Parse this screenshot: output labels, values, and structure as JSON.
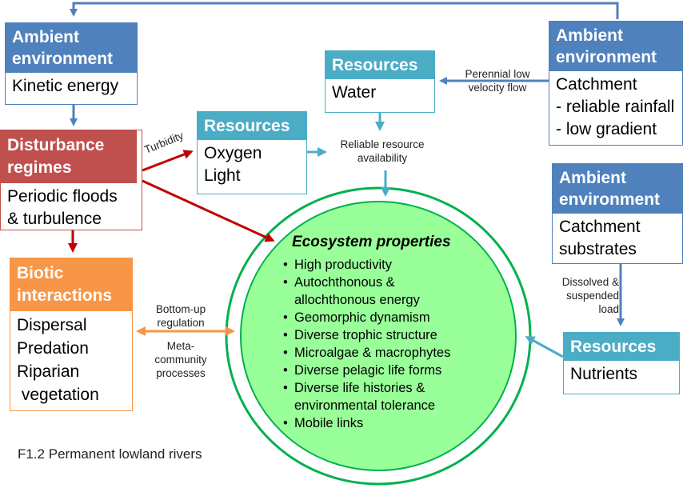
{
  "boxes": {
    "ambient_kinetic": {
      "header": "Ambient environment",
      "body": [
        "Kinetic energy"
      ]
    },
    "ambient_catchment": {
      "header": "Ambient environment",
      "body": [
        "Catchment",
        "- reliable rainfall",
        "- low gradient"
      ]
    },
    "ambient_substrates": {
      "header": "Ambient environment",
      "body": [
        "Catchment",
        "substrates"
      ]
    },
    "resources_water": {
      "header": "Resources",
      "body": [
        "Water"
      ]
    },
    "resources_oxygen": {
      "header": "Resources",
      "body": [
        "Oxygen",
        "Light"
      ]
    },
    "resources_nutrients": {
      "header": "Resources",
      "body": [
        "Nutrients"
      ]
    },
    "disturbance": {
      "header": "Disturbance regimes",
      "body": [
        "Periodic floods",
        "& turbulence"
      ]
    },
    "biotic": {
      "header": "Biotic interactions",
      "body": [
        "Dispersal",
        "Predation",
        "Riparian",
        " vegetation"
      ]
    }
  },
  "labels": {
    "perennial": [
      "Perennial low",
      "velocity flow"
    ],
    "turbidity": "Turbidity",
    "reliable": [
      "Reliable resource",
      "availability"
    ],
    "dissolved": [
      "Dissolved &",
      "suspended",
      "load"
    ],
    "bottom_up": [
      "Bottom-up",
      "regulation"
    ],
    "meta": [
      "Meta-",
      "community",
      "processes"
    ]
  },
  "ecosystem": {
    "title": "Ecosystem properties",
    "items": [
      "High productivity",
      "Autochthonous & allochthonous energy",
      "Geomorphic dynamism",
      "Diverse trophic structure",
      "Microalgae & macrophytes",
      "Diverse pelagic life forms",
      "Diverse life histories & environmental tolerance",
      "Mobile links"
    ]
  },
  "caption": "F1.2 Permanent lowland rivers",
  "colors": {
    "ambient": "#4f81bd",
    "resources": "#4bacc6",
    "disturbance": "#c0504d",
    "biotic": "#f79646",
    "ecosystem_fill": "#99ff99",
    "ecosystem_border": "#00b050"
  }
}
